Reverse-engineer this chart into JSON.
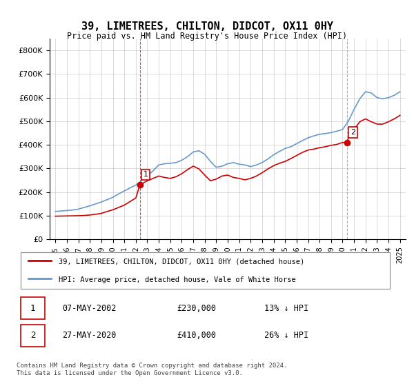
{
  "title": "39, LIMETREES, CHILTON, DIDCOT, OX11 0HY",
  "subtitle": "Price paid vs. HM Land Registry's House Price Index (HPI)",
  "ylabel_format": "£{0}K",
  "yticks": [
    0,
    100000,
    200000,
    300000,
    400000,
    500000,
    600000,
    700000,
    800000
  ],
  "ytick_labels": [
    "£0",
    "£100K",
    "£200K",
    "£300K",
    "£400K",
    "£500K",
    "£600K",
    "£700K",
    "£800K"
  ],
  "xlim": [
    1994.5,
    2025.5
  ],
  "ylim": [
    0,
    850000
  ],
  "hpi_color": "#6699cc",
  "price_color": "#cc0000",
  "marker1_color": "#cc0000",
  "marker2_color": "#cc0000",
  "grid_color": "#cccccc",
  "background_color": "#ffffff",
  "legend_label_red": "39, LIMETREES, CHILTON, DIDCOT, OX11 0HY (detached house)",
  "legend_label_blue": "HPI: Average price, detached house, Vale of White Horse",
  "transaction1_label": "1",
  "transaction1_date": "07-MAY-2002",
  "transaction1_price": "£230,000",
  "transaction1_hpi": "13% ↓ HPI",
  "transaction1_x": 2002.35,
  "transaction1_y": 230000,
  "transaction2_label": "2",
  "transaction2_date": "27-MAY-2020",
  "transaction2_price": "£410,000",
  "transaction2_hpi": "26% ↓ HPI",
  "transaction2_x": 2020.4,
  "transaction2_y": 410000,
  "footnote": "Contains HM Land Registry data © Crown copyright and database right 2024.\nThis data is licensed under the Open Government Licence v3.0.",
  "hpi_years": [
    1995,
    1995.5,
    1996,
    1996.5,
    1997,
    1997.5,
    1998,
    1998.5,
    1999,
    1999.5,
    2000,
    2000.5,
    2001,
    2001.5,
    2002,
    2002.5,
    2003,
    2003.5,
    2004,
    2004.5,
    2005,
    2005.5,
    2006,
    2006.5,
    2007,
    2007.5,
    2008,
    2008.5,
    2009,
    2009.5,
    2010,
    2010.5,
    2011,
    2011.5,
    2012,
    2012.5,
    2013,
    2013.5,
    2014,
    2014.5,
    2015,
    2015.5,
    2016,
    2016.5,
    2017,
    2017.5,
    2018,
    2018.5,
    2019,
    2019.5,
    2020,
    2020.5,
    2021,
    2021.5,
    2022,
    2022.5,
    2023,
    2023.5,
    2024,
    2024.5,
    2025
  ],
  "hpi_values": [
    118000,
    120000,
    122000,
    124000,
    128000,
    135000,
    142000,
    150000,
    158000,
    168000,
    178000,
    192000,
    205000,
    218000,
    230000,
    248000,
    268000,
    290000,
    315000,
    320000,
    322000,
    325000,
    335000,
    350000,
    370000,
    375000,
    360000,
    330000,
    305000,
    310000,
    320000,
    325000,
    318000,
    315000,
    308000,
    315000,
    325000,
    340000,
    358000,
    372000,
    385000,
    392000,
    405000,
    418000,
    430000,
    438000,
    445000,
    448000,
    452000,
    458000,
    465000,
    500000,
    550000,
    595000,
    625000,
    620000,
    600000,
    595000,
    600000,
    610000,
    625000
  ],
  "price_years": [
    1995,
    1995.5,
    1996,
    1996.5,
    1997,
    1997.5,
    1998,
    1998.5,
    1999,
    1999.5,
    2000,
    2000.5,
    2001,
    2001.5,
    2002,
    2002.35,
    2002.5,
    2003,
    2003.5,
    2004,
    2004.5,
    2005,
    2005.5,
    2006,
    2006.5,
    2007,
    2007.5,
    2008,
    2008.5,
    2009,
    2009.5,
    2010,
    2010.5,
    2011,
    2011.5,
    2012,
    2012.5,
    2013,
    2013.5,
    2014,
    2014.5,
    2015,
    2015.5,
    2016,
    2016.5,
    2017,
    2017.5,
    2018,
    2018.5,
    2019,
    2019.5,
    2020,
    2020.4,
    2020.5,
    2021,
    2021.5,
    2022,
    2022.5,
    2023,
    2023.5,
    2024,
    2024.5,
    2025
  ],
  "price_values": [
    98000,
    98500,
    99000,
    99500,
    100000,
    101000,
    103000,
    106000,
    110000,
    118000,
    125000,
    135000,
    145000,
    160000,
    175000,
    230000,
    235000,
    248000,
    258000,
    268000,
    262000,
    258000,
    265000,
    278000,
    295000,
    310000,
    298000,
    272000,
    248000,
    255000,
    268000,
    272000,
    262000,
    258000,
    252000,
    258000,
    268000,
    282000,
    298000,
    312000,
    322000,
    330000,
    342000,
    355000,
    368000,
    378000,
    382000,
    388000,
    392000,
    398000,
    402000,
    410000,
    410000,
    428000,
    465000,
    498000,
    510000,
    498000,
    488000,
    488000,
    498000,
    510000,
    525000
  ],
  "xtick_years": [
    1995,
    1996,
    1997,
    1998,
    1999,
    2000,
    2001,
    2002,
    2003,
    2004,
    2005,
    2006,
    2007,
    2008,
    2009,
    2010,
    2011,
    2012,
    2013,
    2014,
    2015,
    2016,
    2017,
    2018,
    2019,
    2020,
    2021,
    2022,
    2023,
    2024,
    2025
  ],
  "dashed_line1_x": 2002.35,
  "dashed_line2_x": 2020.4
}
